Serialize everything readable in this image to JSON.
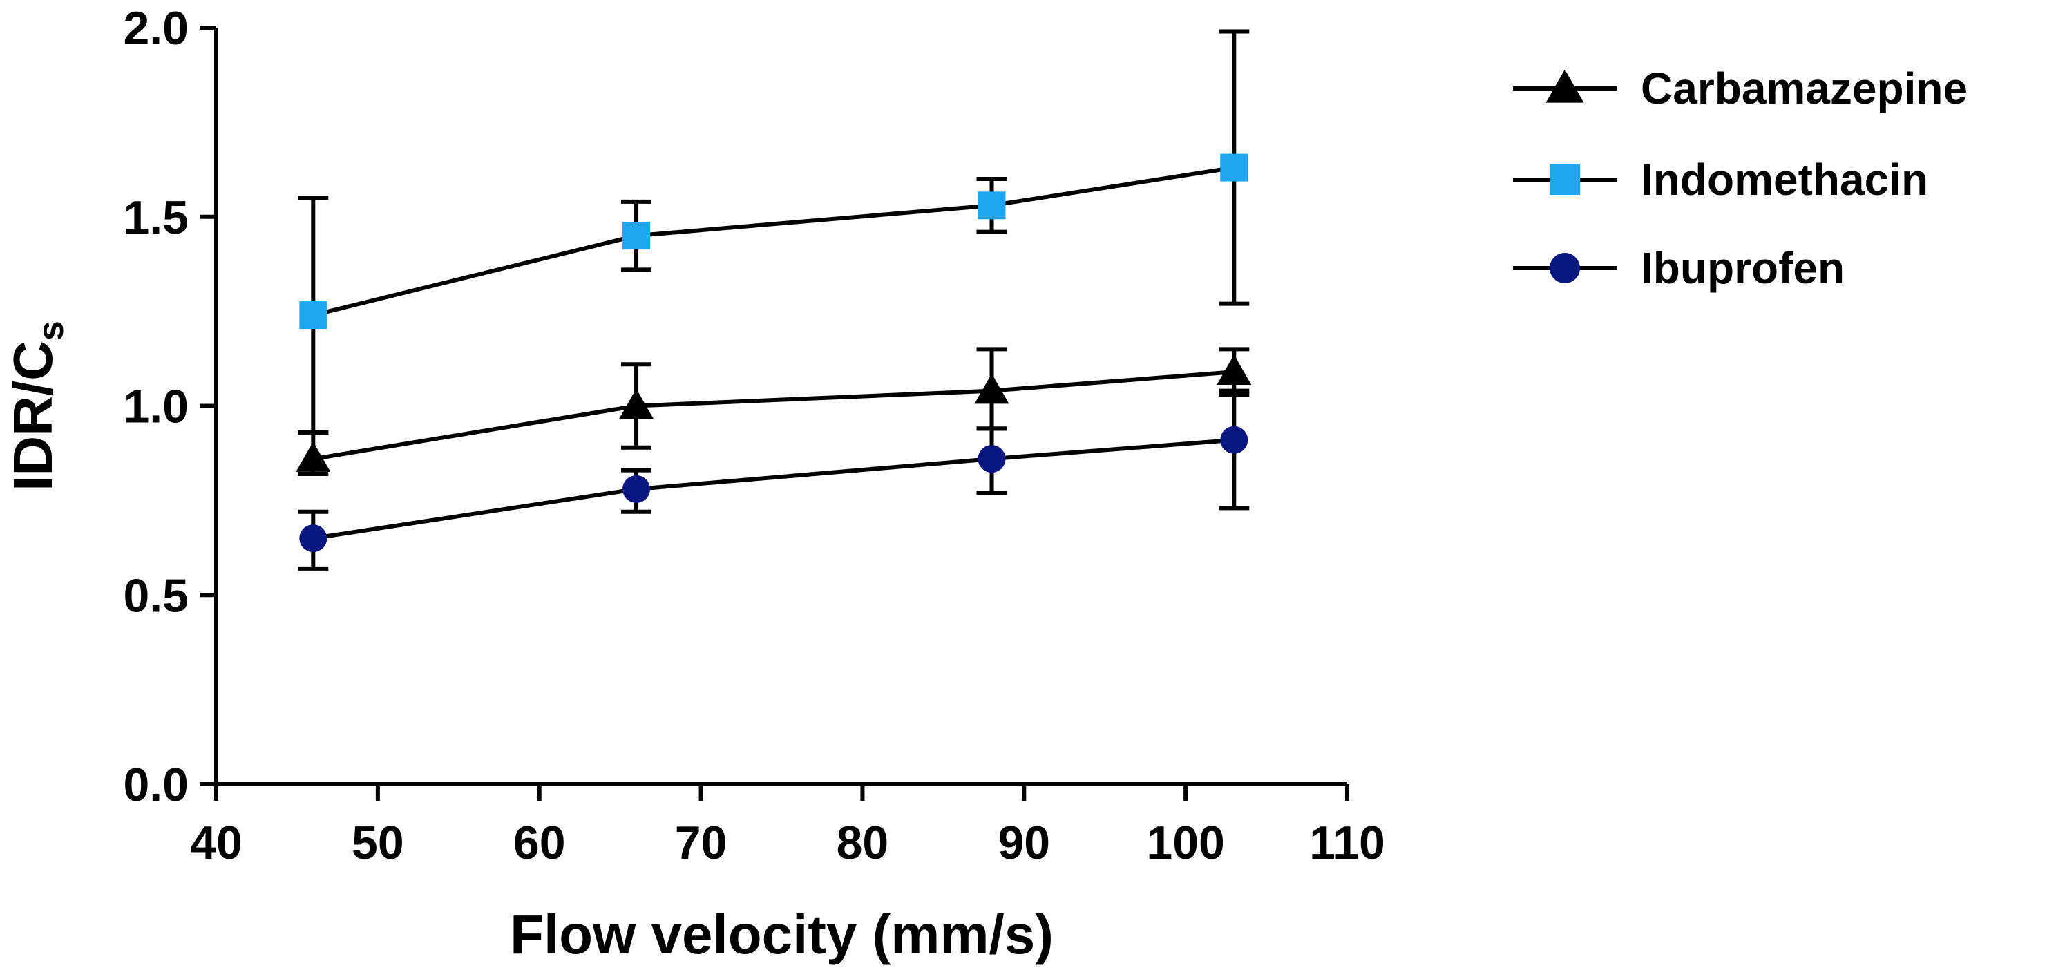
{
  "chart_data": {
    "type": "line",
    "xlabel": "Flow velocity (mm/s)",
    "ylabel_main": "IDR/C",
    "ylabel_sub": "s",
    "xlim": [
      40,
      110
    ],
    "ylim": [
      0.0,
      2.0
    ],
    "x_ticks": [
      40,
      50,
      60,
      70,
      80,
      90,
      100,
      110
    ],
    "x_tick_labels": [
      "40",
      "50",
      "60",
      "70",
      "80",
      "90",
      "100",
      "110"
    ],
    "y_ticks": [
      0.0,
      0.5,
      1.0,
      1.5,
      2.0
    ],
    "y_tick_labels": [
      "0.0",
      "0.5",
      "1.0",
      "1.5",
      "2.0"
    ],
    "grid": false,
    "legend_position": "right",
    "x": [
      46,
      66,
      88,
      103
    ],
    "series": [
      {
        "name": "Carbamazepine",
        "marker": "triangle",
        "color": "#000000",
        "values": [
          0.86,
          1.0,
          1.04,
          1.09
        ],
        "err_low": [
          0.82,
          0.89,
          0.94,
          1.03
        ],
        "err_high": [
          0.93,
          1.11,
          1.15,
          1.15
        ]
      },
      {
        "name": "Indomethacin",
        "marker": "square",
        "color": "#1EA7F0",
        "values": [
          1.24,
          1.45,
          1.53,
          1.63
        ],
        "err_low": [
          0.93,
          1.36,
          1.46,
          1.27
        ],
        "err_high": [
          1.55,
          1.54,
          1.6,
          1.99
        ]
      },
      {
        "name": "Ibuprofen",
        "marker": "circle",
        "color": "#0B1780",
        "values": [
          0.65,
          0.78,
          0.86,
          0.91
        ],
        "err_low": [
          0.57,
          0.72,
          0.77,
          0.73
        ],
        "err_high": [
          0.72,
          0.83,
          0.94,
          1.04
        ]
      }
    ]
  }
}
